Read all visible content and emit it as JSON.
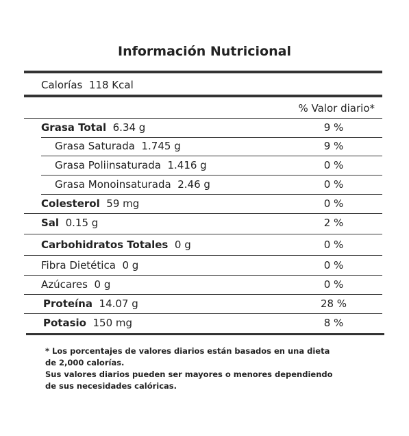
{
  "title": "Información Nutricional",
  "calories": {
    "label": "Calorías",
    "value": "118 Kcal"
  },
  "header": "% Valor diario*",
  "rows": [
    {
      "name": "Grasa Total",
      "amount": "6.34 g",
      "percent": "9 %"
    },
    {
      "name": "Grasa Saturada",
      "amount": "1.745 g",
      "percent": "9 %"
    },
    {
      "name": "Grasa Poliinsaturada",
      "amount": "1.416 g",
      "percent": "0 %"
    },
    {
      "name": "Grasa Monoinsaturada",
      "amount": "2.46 g",
      "percent": "0 %"
    },
    {
      "name": "Colesterol",
      "amount": "59 mg",
      "percent": "0 %"
    },
    {
      "name": "Sal",
      "amount": "0.15 g",
      "percent": "2 %"
    },
    {
      "name": "Carbohidratos Totales",
      "amount": "0 g",
      "percent": "0 %"
    },
    {
      "name": "Fibra Dietética",
      "amount": "0 g",
      "percent": "0 %"
    },
    {
      "name": "Azúcares",
      "amount": "0 g",
      "percent": "0 %"
    },
    {
      "name": "Proteína",
      "amount": "14.07 g",
      "percent": "28 %"
    },
    {
      "name": "Potasio",
      "amount": "150 mg",
      "percent": "8 %"
    }
  ],
  "footnote": [
    "*  Los porcentajes de valores diarios están basados en una dieta",
    "de 2,000 calorías.",
    "Sus valores diarios pueden ser mayores o menores dependiendo",
    "de sus necesidades calóricas."
  ]
}
